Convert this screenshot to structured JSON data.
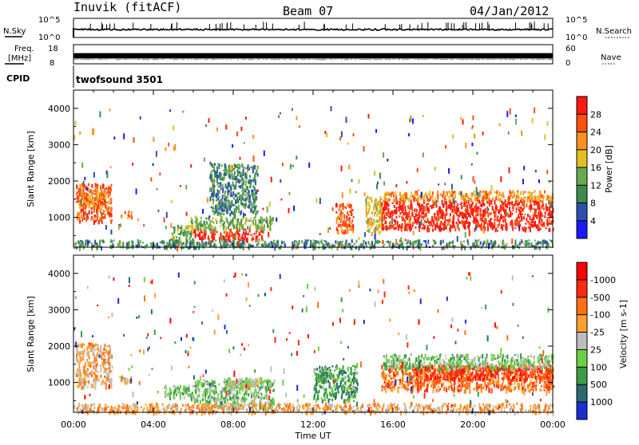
{
  "header": {
    "station": "Inuvik (fitACF)",
    "beam": "Beam 07",
    "date": "04/Jan/2012"
  },
  "strips": {
    "nsky_label": "N.Sky",
    "nsky_ticks": [
      "10^5",
      "10^0"
    ],
    "nsearch_label": "N.Search",
    "nsearch_ticks": [
      "10^5",
      "10^0"
    ],
    "freq_label": "Freq.",
    "freq_unit": "[MHz]",
    "freq_ticks": [
      "18",
      "8"
    ],
    "nave_label": "Nave",
    "nave_ticks": [
      "60",
      "0"
    ],
    "cpid_label": "CPID",
    "cpid_value": "twofsound 3501"
  },
  "chart_data": [
    {
      "type": "heatmap",
      "title": "",
      "xlabel": "",
      "ylabel": "Slant Range [km]",
      "x_ticks": [
        "00:00",
        "04:00",
        "08:00",
        "12:00",
        "16:00",
        "20:00",
        "00:00"
      ],
      "y_ticks": [
        1000,
        2000,
        3000,
        4000
      ],
      "xlim_hours": [
        0,
        24
      ],
      "ylim_km": [
        180,
        4500
      ],
      "colorbar": {
        "label": "Power [dB]",
        "ticks": [
          "4",
          "8",
          "12",
          "16",
          "20",
          "24",
          "28"
        ],
        "colors": [
          "#1a1aff",
          "#2f4fb0",
          "#3c8a4c",
          "#6aaa52",
          "#e0c020",
          "#ff9020",
          "#ff5010",
          "#ff1a10"
        ]
      },
      "regions": [
        {
          "t": [
            0.1,
            1.9
          ],
          "r": [
            900,
            1950
          ],
          "level": 6
        },
        {
          "t": [
            0.2,
            1.6
          ],
          "r": [
            1300,
            1800
          ],
          "level": 5
        },
        {
          "t": [
            2.3,
            2.9
          ],
          "r": [
            1000,
            1200
          ],
          "level": 5
        },
        {
          "t": [
            4.8,
            6.0
          ],
          "r": [
            300,
            800
          ],
          "level": 3
        },
        {
          "t": [
            6.0,
            9.5
          ],
          "r": [
            400,
            700
          ],
          "level": 7
        },
        {
          "t": [
            5.8,
            10.0
          ],
          "r": [
            700,
            1050
          ],
          "level": 3
        },
        {
          "t": [
            6.8,
            9.2
          ],
          "r": [
            1100,
            2500
          ],
          "level": 2
        },
        {
          "t": [
            13.1,
            14.0
          ],
          "r": [
            600,
            1400
          ],
          "level": 6
        },
        {
          "t": [
            14.6,
            15.5
          ],
          "r": [
            600,
            1600
          ],
          "level": 4
        },
        {
          "t": [
            15.4,
            24.0
          ],
          "r": [
            700,
            1500
          ],
          "level": 7
        },
        {
          "t": [
            15.5,
            24.0
          ],
          "r": [
            1500,
            1750
          ],
          "level": 5
        },
        {
          "t": [
            0.0,
            24.0
          ],
          "r": [
            200,
            400
          ],
          "level": 2
        }
      ]
    },
    {
      "type": "heatmap",
      "title": "",
      "xlabel": "Time UT",
      "ylabel": "Slant Range [km]",
      "x_ticks": [
        "00:00",
        "04:00",
        "08:00",
        "12:00",
        "16:00",
        "20:00",
        "00:00"
      ],
      "y_ticks": [
        1000,
        2000,
        3000,
        4000
      ],
      "xlim_hours": [
        0,
        24
      ],
      "ylim_km": [
        180,
        4500
      ],
      "colorbar": {
        "label": "Velocity [m s-1]",
        "ticks": [
          "1000",
          "500",
          "100",
          "25",
          "-25",
          "-100",
          "-500",
          "-1000"
        ],
        "colors": [
          "#1a2fd0",
          "#2a6a70",
          "#3c9a48",
          "#6ccf40",
          "#bdbdbd",
          "#ffa030",
          "#ff7010",
          "#ff2a10",
          "#ff0000"
        ]
      },
      "regions": [
        {
          "t": [
            0.1,
            1.9
          ],
          "r": [
            900,
            2100
          ],
          "level": 5
        },
        {
          "t": [
            2.3,
            2.9
          ],
          "r": [
            1000,
            1200
          ],
          "level": 5
        },
        {
          "t": [
            4.5,
            6.0
          ],
          "r": [
            600,
            950
          ],
          "level": 3
        },
        {
          "t": [
            6.0,
            10.0
          ],
          "r": [
            300,
            1100
          ],
          "level": 3
        },
        {
          "t": [
            7.5,
            9.5
          ],
          "r": [
            900,
            1150
          ],
          "level": 4
        },
        {
          "t": [
            12.0,
            14.2
          ],
          "r": [
            500,
            1500
          ],
          "level": 2
        },
        {
          "t": [
            15.4,
            24.0
          ],
          "r": [
            800,
            1500
          ],
          "level": 6
        },
        {
          "t": [
            17.0,
            24.0
          ],
          "r": [
            1100,
            1500
          ],
          "level": 7
        },
        {
          "t": [
            15.5,
            24.0
          ],
          "r": [
            1400,
            1800
          ],
          "level": 3
        },
        {
          "t": [
            0.0,
            24.0
          ],
          "r": [
            200,
            450
          ],
          "level": 5
        }
      ]
    }
  ],
  "x_axis": {
    "label": "Time UT",
    "ticks": [
      "00:00",
      "04:00",
      "08:00",
      "12:00",
      "16:00",
      "20:00",
      "00:00"
    ]
  }
}
